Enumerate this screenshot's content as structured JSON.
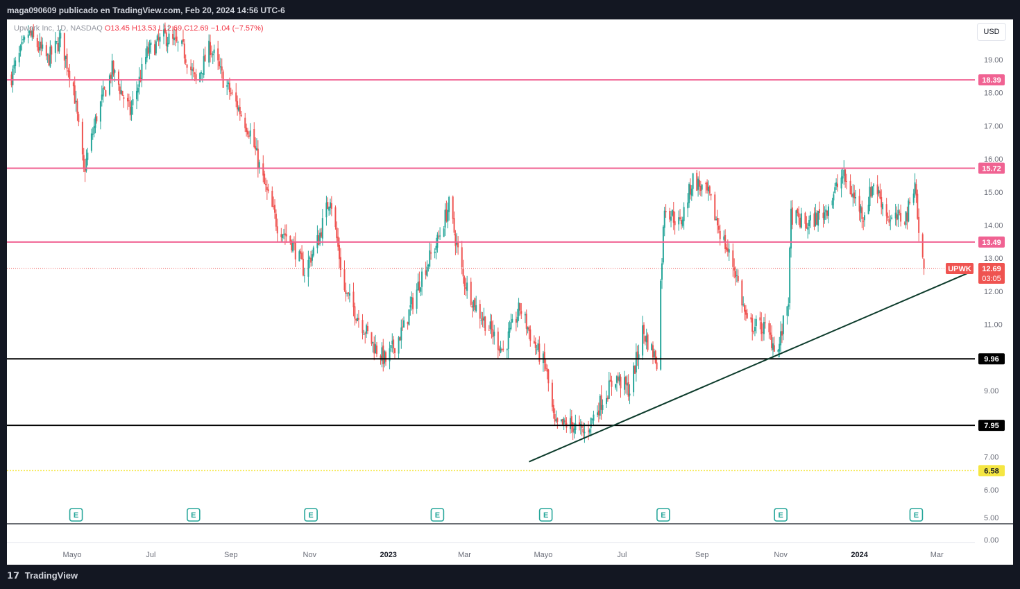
{
  "header": {
    "publisher": "maga090609 publicado en TradingView.com, Feb 20, 2024 14:56 UTC-6"
  },
  "legend": {
    "symbol": "Upwork Inc, 1D, NASDAQ",
    "ohlc": "O13.45 H13.53 L12.69 C12.69 −1.04 (−7.57%)"
  },
  "currency": "USD",
  "footer": {
    "logo_text": "TradingView"
  },
  "colors": {
    "up": "#26a69a",
    "down": "#ef5350",
    "resistance": "#f06292",
    "support": "#000000",
    "low_line": "#f5e642",
    "trendline": "#0c3b2b"
  },
  "chart_data": {
    "type": "candlestick",
    "symbol": "UPWK",
    "ylim": [
      6.0,
      19.6
    ],
    "y_ticks": [
      "19.00",
      "18.00",
      "17.00",
      "16.00",
      "15.00",
      "14.00",
      "13.00",
      "12.00",
      "11.00",
      "9.00",
      "7.00",
      "6.00"
    ],
    "lower_ticks": [
      "5.00",
      "0.00"
    ],
    "x_tick_labels": [
      "Mayo",
      "Jul",
      "Sep",
      "Nov",
      "2023",
      "Mar",
      "Mayo",
      "Jul",
      "Sep",
      "Nov",
      "2024",
      "Mar"
    ],
    "bold_x_ticks": [
      "2023",
      "2024"
    ],
    "horizontal_levels": [
      {
        "value": 18.39,
        "label": "18.39",
        "kind": "resistance"
      },
      {
        "value": 15.72,
        "label": "15.72",
        "kind": "resistance"
      },
      {
        "value": 13.49,
        "label": "13.49",
        "kind": "resistance"
      },
      {
        "value": 9.96,
        "label": "9.96",
        "kind": "support"
      },
      {
        "value": 7.95,
        "label": "7.95",
        "kind": "support"
      },
      {
        "value": 6.58,
        "label": "6.58",
        "kind": "low"
      }
    ],
    "last_price": {
      "tag": "UPWK",
      "value": 12.69,
      "label": "12.69",
      "countdown": "03:05"
    },
    "trendline": {
      "start": {
        "date": "2023-04-20",
        "price": 6.85
      },
      "end": {
        "date": "2024-03-25",
        "price": 12.55
      }
    },
    "earnings_markers": {
      "symbol": "E",
      "dates": [
        "2022-05-04",
        "2022-08-03",
        "2022-11-02",
        "2023-02-08",
        "2023-05-03",
        "2023-08-02",
        "2023-11-01",
        "2024-02-14"
      ]
    },
    "price_path": [
      {
        "date": "2022-03-15",
        "price": 18.5
      },
      {
        "date": "2022-03-28",
        "price": 19.8
      },
      {
        "date": "2022-04-12",
        "price": 19.0
      },
      {
        "date": "2022-04-22",
        "price": 19.6
      },
      {
        "date": "2022-05-02",
        "price": 18.2
      },
      {
        "date": "2022-05-10",
        "price": 15.6
      },
      {
        "date": "2022-05-20",
        "price": 17.3
      },
      {
        "date": "2022-06-01",
        "price": 18.7
      },
      {
        "date": "2022-06-15",
        "price": 17.4
      },
      {
        "date": "2022-06-28",
        "price": 19.2
      },
      {
        "date": "2022-07-12",
        "price": 19.7
      },
      {
        "date": "2022-07-26",
        "price": 19.3
      },
      {
        "date": "2022-08-05",
        "price": 18.3
      },
      {
        "date": "2022-08-16",
        "price": 19.4
      },
      {
        "date": "2022-08-26",
        "price": 18.4
      },
      {
        "date": "2022-09-06",
        "price": 17.6
      },
      {
        "date": "2022-09-16",
        "price": 16.8
      },
      {
        "date": "2022-09-27",
        "price": 15.2
      },
      {
        "date": "2022-10-07",
        "price": 14.0
      },
      {
        "date": "2022-10-18",
        "price": 13.5
      },
      {
        "date": "2022-10-28",
        "price": 12.6
      },
      {
        "date": "2022-11-08",
        "price": 13.6
      },
      {
        "date": "2022-11-17",
        "price": 14.9
      },
      {
        "date": "2022-11-28",
        "price": 12.0
      },
      {
        "date": "2022-12-09",
        "price": 11.2
      },
      {
        "date": "2022-12-20",
        "price": 10.4
      },
      {
        "date": "2022-12-30",
        "price": 9.9
      },
      {
        "date": "2023-01-13",
        "price": 10.9
      },
      {
        "date": "2023-01-27",
        "price": 12.5
      },
      {
        "date": "2023-02-08",
        "price": 13.5
      },
      {
        "date": "2023-02-17",
        "price": 14.6
      },
      {
        "date": "2023-02-28",
        "price": 12.4
      },
      {
        "date": "2023-03-10",
        "price": 11.5
      },
      {
        "date": "2023-03-20",
        "price": 10.9
      },
      {
        "date": "2023-03-31",
        "price": 10.2
      },
      {
        "date": "2023-04-13",
        "price": 11.5
      },
      {
        "date": "2023-04-24",
        "price": 10.4
      },
      {
        "date": "2023-05-03",
        "price": 9.7
      },
      {
        "date": "2023-05-10",
        "price": 7.9
      },
      {
        "date": "2023-05-22",
        "price": 8.0
      },
      {
        "date": "2023-06-02",
        "price": 7.7
      },
      {
        "date": "2023-06-14",
        "price": 8.6
      },
      {
        "date": "2023-06-26",
        "price": 9.4
      },
      {
        "date": "2023-07-07",
        "price": 9.0
      },
      {
        "date": "2023-07-17",
        "price": 10.8
      },
      {
        "date": "2023-07-28",
        "price": 9.9
      },
      {
        "date": "2023-08-03",
        "price": 14.6
      },
      {
        "date": "2023-08-15",
        "price": 14.0
      },
      {
        "date": "2023-08-25",
        "price": 15.4
      },
      {
        "date": "2023-09-06",
        "price": 14.9
      },
      {
        "date": "2023-09-15",
        "price": 13.8
      },
      {
        "date": "2023-09-27",
        "price": 12.6
      },
      {
        "date": "2023-10-06",
        "price": 11.0
      },
      {
        "date": "2023-10-19",
        "price": 10.9
      },
      {
        "date": "2023-10-30",
        "price": 10.2
      },
      {
        "date": "2023-11-07",
        "price": 11.8
      },
      {
        "date": "2023-11-09",
        "price": 14.3
      },
      {
        "date": "2023-11-21",
        "price": 14.0
      },
      {
        "date": "2023-12-05",
        "price": 14.4
      },
      {
        "date": "2023-12-19",
        "price": 15.5
      },
      {
        "date": "2024-01-04",
        "price": 14.3
      },
      {
        "date": "2024-01-12",
        "price": 15.3
      },
      {
        "date": "2024-01-25",
        "price": 14.1
      },
      {
        "date": "2024-02-07",
        "price": 14.3
      },
      {
        "date": "2024-02-13",
        "price": 15.4
      },
      {
        "date": "2024-02-16",
        "price": 13.7
      },
      {
        "date": "2024-02-20",
        "price": 12.69
      }
    ]
  }
}
